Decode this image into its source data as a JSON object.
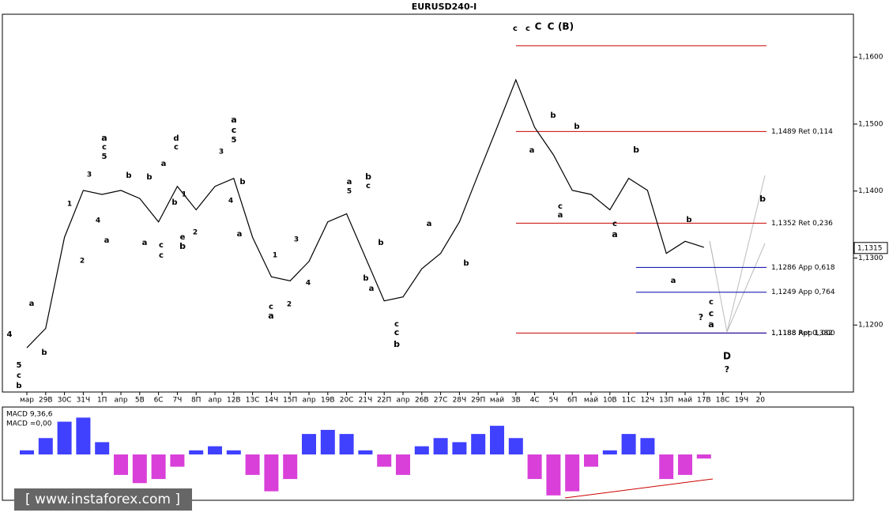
{
  "chart_data": [
    {
      "type": "line",
      "title": "EURUSD240-I",
      "categories": [
        "мар",
        "29В",
        "30С",
        "31Ч",
        "1П",
        "апр",
        "5В",
        "6С",
        "7Ч",
        "8П",
        "апр",
        "12В",
        "13С",
        "14Ч",
        "15П",
        "апр",
        "19В",
        "20С",
        "21Ч",
        "22П",
        "апр",
        "26В",
        "27С",
        "28Ч",
        "29П",
        "май",
        "3В",
        "4С",
        "5Ч",
        "6П",
        "май",
        "10В",
        "11С",
        "12Ч",
        "13П",
        "май",
        "17В",
        "18С",
        "19Ч",
        "20"
      ],
      "series": [
        {
          "name": "EURUSD",
          "color": "#000000",
          "values": [
            1.1166,
            1.1195,
            1.1331,
            1.1401,
            1.1395,
            1.1401,
            1.1389,
            1.1354,
            1.1407,
            1.1372,
            1.1407,
            1.1419,
            1.1331,
            1.1272,
            1.1266,
            1.1295,
            1.1354,
            1.1366,
            1.1301,
            1.1236,
            1.1242,
            1.1284,
            1.1307,
            1.1354,
            1.1425,
            1.1495,
            1.1566,
            1.1495,
            1.1454,
            1.1401,
            1.1395,
            1.1372,
            1.1419,
            1.1401,
            1.1307,
            1.1325,
            1.1316,
            null,
            null,
            null
          ]
        }
      ],
      "ylim": [
        1.11,
        1.1664
      ],
      "yticks": [
        {
          "value": 1.12,
          "label": "1,1200"
        },
        {
          "value": 1.13,
          "label": "1,1300"
        },
        {
          "value": 1.14,
          "label": "1,1400"
        },
        {
          "value": 1.15,
          "label": "1,1500"
        },
        {
          "value": 1.16,
          "label": "1,1600"
        }
      ],
      "current_price": {
        "value": 1.1315,
        "label": "1,1315"
      },
      "levels": [
        {
          "value": 1.1617,
          "color": "#cc0000"
        },
        {
          "value": 1.1489,
          "label": "1,1489 Ret 0,114",
          "color": "#cc0000"
        },
        {
          "value": 1.1352,
          "label": "1,1352 Ret 0,236",
          "color": "#cc0000"
        },
        {
          "value": 1.1286,
          "label": "1,1286 App 0,618",
          "color": "#0000aa"
        },
        {
          "value": 1.1249,
          "label": "1,1249 App 0,764",
          "color": "#0000aa"
        },
        {
          "value": 1.1188,
          "label": "1,1188 Ret 0,382",
          "color": "#cc0000"
        },
        {
          "value": 1.1188,
          "label": "1,1188 App 1,000",
          "color": "#0000aa"
        }
      ],
      "annotations": [
        "c",
        "c",
        "C",
        "C",
        "(B)",
        "b",
        "b",
        "a",
        "c",
        "a",
        "c",
        "b",
        "b",
        "a",
        "b",
        "a",
        "c",
        "c",
        "a",
        "?",
        "D",
        "?",
        "b",
        "c",
        "b",
        "a",
        "b",
        "b",
        "a",
        "c",
        "c",
        "b",
        "a",
        "c",
        "1",
        "2",
        "3",
        "4",
        "5",
        "a",
        "a",
        "c",
        "5",
        "3",
        "4",
        "b",
        "a",
        "a",
        "c",
        "5",
        "3",
        "1",
        "2",
        "4",
        "a",
        "b",
        "b",
        "a",
        "c",
        "c",
        "d",
        "c",
        "a",
        "b",
        "1",
        "2",
        "e",
        "b",
        "4",
        "5",
        "c",
        "b",
        "a",
        "b"
      ]
    },
    {
      "type": "bar",
      "title": "MACD 9,36,6",
      "subtitle": "MACD =0,00",
      "values": [
        0.1,
        0.4,
        0.8,
        0.9,
        0.3,
        -0.5,
        -0.7,
        -0.6,
        -0.3,
        0.1,
        0.2,
        0.1,
        -0.5,
        -0.9,
        -0.6,
        0.5,
        0.6,
        0.5,
        0.1,
        -0.3,
        -0.5,
        0.2,
        0.4,
        0.3,
        0.5,
        0.7,
        0.4,
        -0.6,
        -1.0,
        -0.9,
        -0.3,
        0.1,
        0.5,
        0.4,
        -0.6,
        -0.5,
        -0.1,
        null,
        null,
        null
      ],
      "ylim": [
        -1.1,
        1.1
      ],
      "positive_color": "#0000ff",
      "negative_color": "#cc00cc"
    },
    {
      "type": "watermark",
      "text": "[ www.instaforex.com ]"
    }
  ]
}
